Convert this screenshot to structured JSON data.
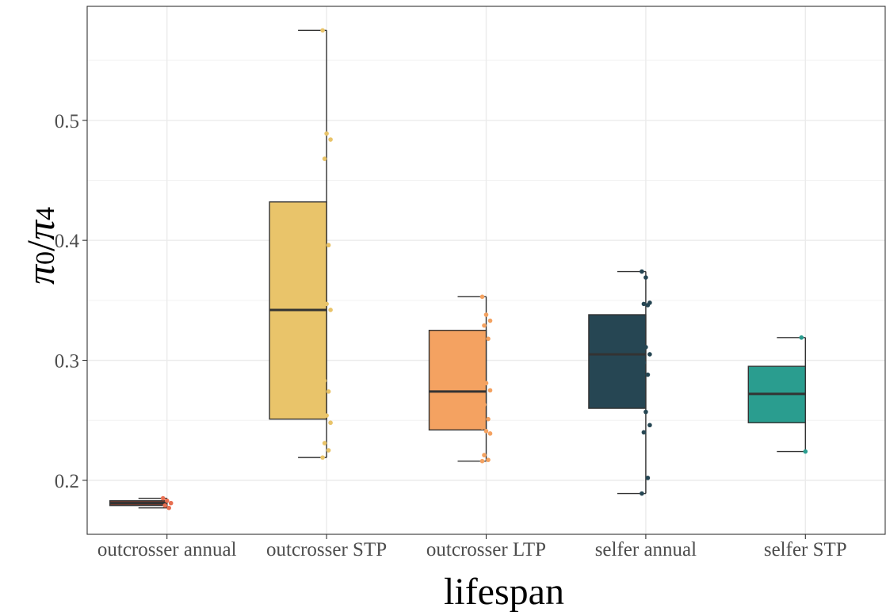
{
  "chart_data": {
    "type": "box",
    "xlabel": "lifespan",
    "ylabel": "π0/π4",
    "ylabel_parts": {
      "pi": "π",
      "sub0": "0",
      "slash": "/",
      "sub4": "4"
    },
    "ylim": [
      0.155,
      0.595
    ],
    "yticks": [
      0.2,
      0.3,
      0.4,
      0.5
    ],
    "ytick_labels": [
      "0.2",
      "0.3",
      "0.4",
      "0.5"
    ],
    "grid": true,
    "categories": [
      "outcrosser annual",
      "outcrosser STP",
      "outcrosser LTP",
      "selfer annual",
      "selfer STP"
    ],
    "colors": [
      "#7a3b2e",
      "#e9c46a",
      "#f4a261",
      "#264653",
      "#2a9d8f"
    ],
    "point_colors": [
      "#e76f51",
      "#e9c46a",
      "#f4a261",
      "#264653",
      "#2a9d8f"
    ],
    "boxes": [
      {
        "category": "outcrosser annual",
        "min": 0.177,
        "q1": 0.179,
        "median": 0.181,
        "q3": 0.183,
        "max": 0.185,
        "points": [
          0.185,
          0.183,
          0.181,
          0.179,
          0.177
        ]
      },
      {
        "category": "outcrosser STP",
        "min": 0.219,
        "q1": 0.251,
        "median": 0.342,
        "q3": 0.432,
        "max": 0.575,
        "points": [
          0.575,
          0.489,
          0.484,
          0.468,
          0.396,
          0.377,
          0.347,
          0.342,
          0.283,
          0.274,
          0.264,
          0.254,
          0.248,
          0.231,
          0.225,
          0.219
        ]
      },
      {
        "category": "outcrosser LTP",
        "min": 0.216,
        "q1": 0.242,
        "median": 0.274,
        "q3": 0.325,
        "max": 0.353,
        "points": [
          0.353,
          0.338,
          0.333,
          0.329,
          0.318,
          0.294,
          0.281,
          0.275,
          0.263,
          0.251,
          0.244,
          0.241,
          0.239,
          0.221,
          0.217,
          0.216
        ]
      },
      {
        "category": "selfer annual",
        "min": 0.189,
        "q1": 0.26,
        "median": 0.305,
        "q3": 0.338,
        "max": 0.374,
        "points": [
          0.374,
          0.369,
          0.348,
          0.347,
          0.346,
          0.316,
          0.311,
          0.305,
          0.298,
          0.288,
          0.269,
          0.257,
          0.246,
          0.24,
          0.202,
          0.189
        ]
      },
      {
        "category": "selfer STP",
        "min": 0.224,
        "q1": 0.248,
        "median": 0.272,
        "q3": 0.295,
        "max": 0.319,
        "points": [
          0.319,
          0.224
        ]
      }
    ]
  }
}
